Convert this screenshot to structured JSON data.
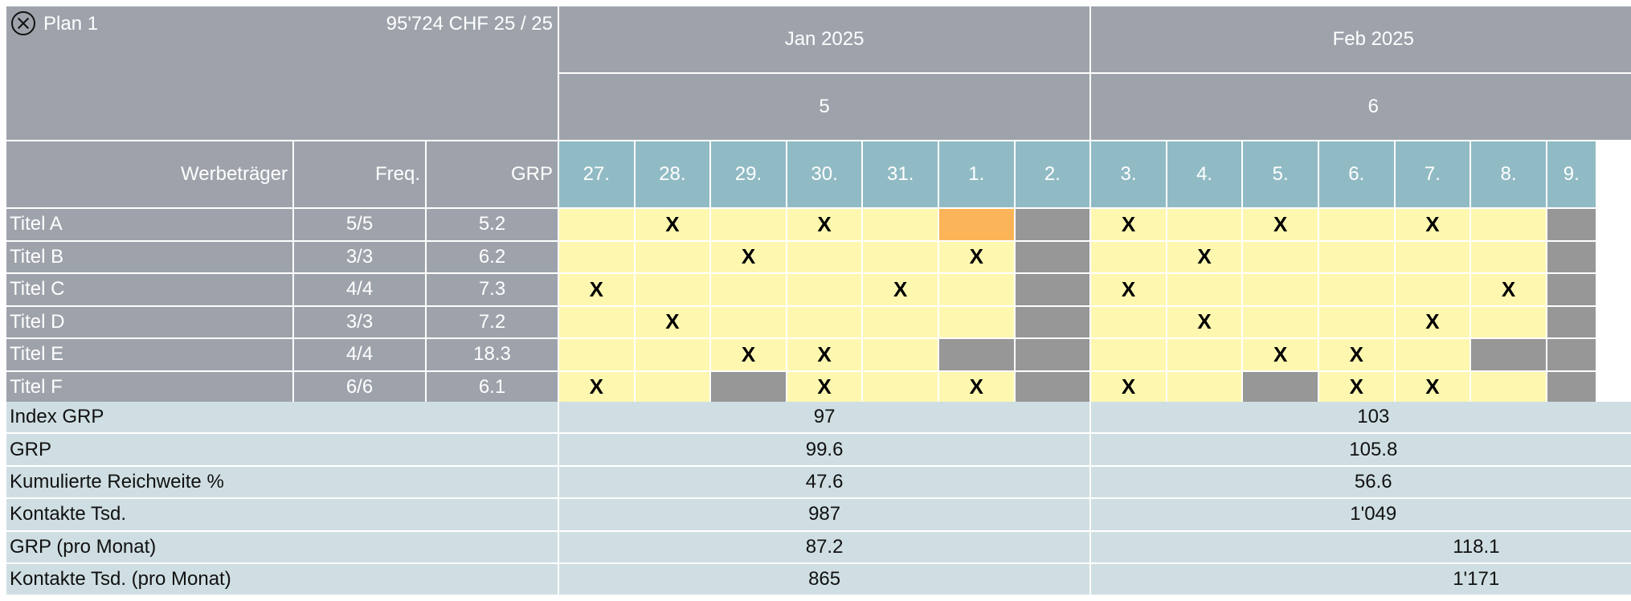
{
  "plan": {
    "title": "Plan 1",
    "summary": "95'724 CHF 25 / 25"
  },
  "header": {
    "col_media": "Werbeträger",
    "col_freq": "Freq.",
    "col_grp": "GRP",
    "months": [
      "Jan 2025",
      "Feb 2025"
    ],
    "weeks": [
      "5",
      "6"
    ],
    "days": [
      "27.",
      "28.",
      "29.",
      "30.",
      "31.",
      "1.",
      "2.",
      "3.",
      "4.",
      "5.",
      "6.",
      "7.",
      "8.",
      "9."
    ]
  },
  "colors": {
    "header_gray": "#9ea3ab",
    "day_teal": "#91bbc4",
    "available_yellow": "#fef7b0",
    "highlight_orange": "#fbb457",
    "blocked_gray": "#979797",
    "summary_blue": "#cfdee2"
  },
  "rows": [
    {
      "title": "Titel A",
      "freq": "5/5",
      "grp": "5.2",
      "cells": [
        "",
        "X",
        "",
        "X",
        "",
        "orange",
        "gray",
        "X",
        "",
        "X",
        "",
        "X",
        "",
        "gray"
      ],
      "marks": [
        "",
        "X",
        "",
        "X",
        "",
        "",
        "",
        "X",
        "",
        "X",
        "",
        "X",
        "",
        ""
      ]
    },
    {
      "title": "Titel B",
      "freq": "3/3",
      "grp": "6.2",
      "cells": [
        "",
        "",
        "",
        "",
        "",
        "",
        "gray",
        "",
        "",
        "",
        "",
        "",
        "",
        "gray"
      ],
      "marks": [
        "",
        "",
        "X",
        "",
        "",
        "X",
        "",
        "",
        "X",
        "",
        "",
        "",
        "",
        ""
      ]
    },
    {
      "title": "Titel C",
      "freq": "4/4",
      "grp": "7.3",
      "cells": [
        "",
        "",
        "",
        "",
        "",
        "",
        "gray",
        "",
        "",
        "",
        "",
        "",
        "",
        "gray"
      ],
      "marks": [
        "X",
        "",
        "",
        "",
        "X",
        "",
        "",
        "X",
        "",
        "",
        "",
        "",
        "X",
        ""
      ]
    },
    {
      "title": "Titel D",
      "freq": "3/3",
      "grp": "7.2",
      "cells": [
        "",
        "",
        "",
        "",
        "",
        "",
        "gray",
        "",
        "",
        "",
        "",
        "",
        "",
        "gray"
      ],
      "marks": [
        "",
        "X",
        "",
        "",
        "",
        "",
        "",
        "",
        "X",
        "",
        "",
        "X",
        "",
        ""
      ]
    },
    {
      "title": "Titel E",
      "freq": "4/4",
      "grp": "18.3",
      "cells": [
        "",
        "",
        "",
        "",
        "",
        "gray",
        "gray",
        "",
        "",
        "",
        "",
        "",
        "gray",
        "gray"
      ],
      "marks": [
        "",
        "",
        "X",
        "X",
        "",
        "",
        "",
        "",
        "",
        "X",
        "X",
        "",
        "",
        ""
      ]
    },
    {
      "title": "Titel F",
      "freq": "6/6",
      "grp": "6.1",
      "cells": [
        "",
        "",
        "gray",
        "",
        "",
        "",
        "gray",
        "",
        "",
        "gray",
        "",
        "",
        "",
        "gray"
      ],
      "marks": [
        "X",
        "",
        "",
        "X",
        "",
        "X",
        "",
        "X",
        "",
        "",
        "X",
        "X",
        "",
        ""
      ]
    }
  ],
  "summary": [
    {
      "label": "Index GRP",
      "w1": "97",
      "w2": "103",
      "align2": "week"
    },
    {
      "label": "GRP",
      "w1": "99.6",
      "w2": "105.8",
      "align2": "week"
    },
    {
      "label": "Kumulierte Reichweite %",
      "w1": "47.6",
      "w2": "56.6",
      "align2": "week"
    },
    {
      "label": "Kontakte Tsd.",
      "w1": "987",
      "w2": "1'049",
      "align2": "week"
    },
    {
      "label": "GRP (pro Monat)",
      "w1": "87.2",
      "w2": "118.1",
      "align2": "month"
    },
    {
      "label": "Kontakte Tsd. (pro Monat)",
      "w1": "865",
      "w2": "1'171",
      "align2": "month"
    }
  ]
}
